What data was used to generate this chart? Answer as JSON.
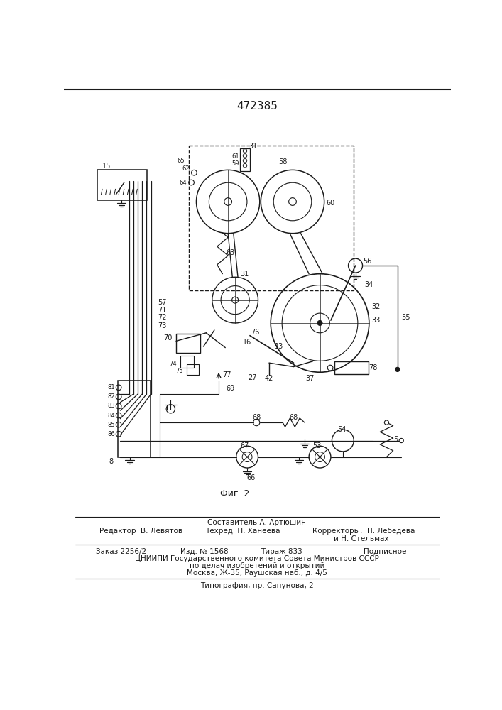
{
  "title": "472385",
  "fig_label": "Фиг. 2",
  "bg_color": "#ffffff",
  "lc": "#1a1a1a",
  "footer": {
    "sostavitel": "Составитель А. Артюшин",
    "redaktor": "Редактор  В. Левятов",
    "tehred": "Техред  Н. Ханеева",
    "korrektory": "Корректоры:  Н. Лебедева",
    "korrektory2": "и Н. Стельмах",
    "zakaz": "Заказ 2256/2",
    "izd": "Изд. № 1568",
    "tirazh": "Тираж 833",
    "podpisnoe": "Подписное",
    "tsnipi": "ЦНИИПИ Государственного комитета Совета Министров СССР",
    "po_delam": "по делач изобретений и открытий",
    "moskva": "Москва, Ж-35, Раушская наб., д. 4/5",
    "tipografia": "Типография, пр. Сапунова, 2"
  }
}
